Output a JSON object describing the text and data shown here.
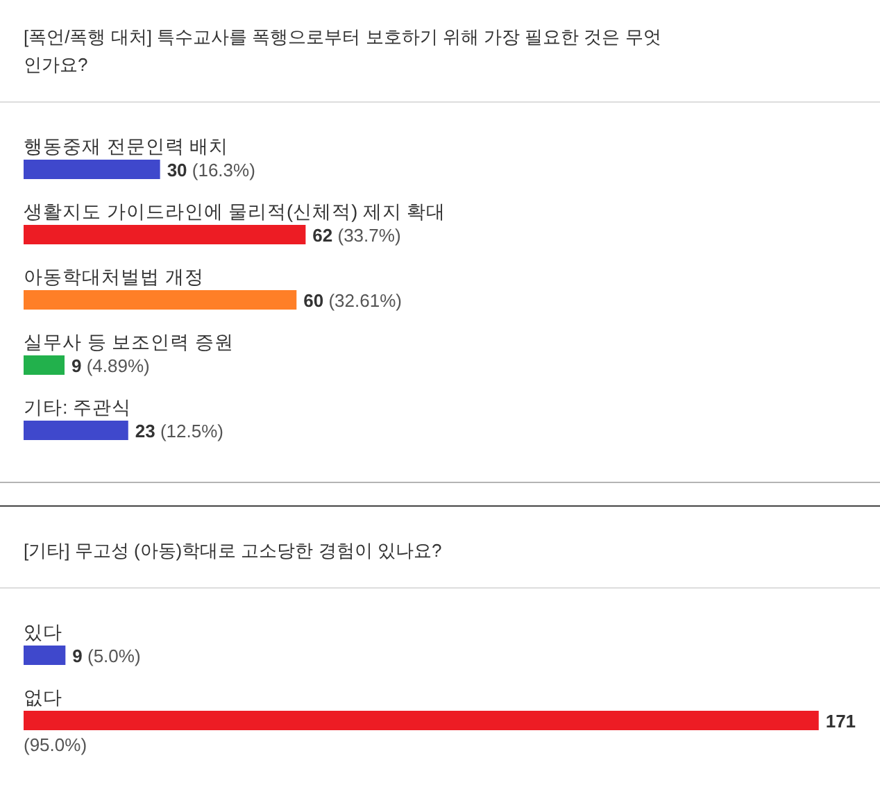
{
  "chart_data": [
    {
      "type": "bar",
      "orientation": "horizontal",
      "title": "[폭언/폭행 대처] 특수교사를 폭행으로부터 보호하기 위해 가장 필요한 것은 무엇인가요?",
      "categories": [
        "행동중재 전문인력 배치",
        "생활지도 가이드라인에 물리적(신체적) 제지 확대",
        "아동학대처벌법 개정",
        "실무사 등 보조인력 증원",
        "기타: 주관식"
      ],
      "values": [
        30,
        62,
        60,
        9,
        23
      ],
      "colors": [
        "#3f48cc",
        "#ed1c24",
        "#ff7f27",
        "#22b14c",
        "#3f48cc"
      ],
      "value_labels": [
        "**30** (16.3%)",
        "**62** (33.7%)",
        "**60** (32.61%)",
        "**9** (4.89%)",
        "**23** (12.5%)"
      ]
    },
    {
      "type": "bar",
      "orientation": "horizontal",
      "title": "[기타] 무고성 (아동)학대로 고소당한 경험이 있나요?",
      "categories": [
        "있다",
        "없다"
      ],
      "values": [
        9,
        171
      ],
      "colors": [
        "#3f48cc",
        "#ed1c24"
      ],
      "value_labels": [
        "**9** (5.0%)",
        "**171** (95.0%)"
      ]
    }
  ]
}
